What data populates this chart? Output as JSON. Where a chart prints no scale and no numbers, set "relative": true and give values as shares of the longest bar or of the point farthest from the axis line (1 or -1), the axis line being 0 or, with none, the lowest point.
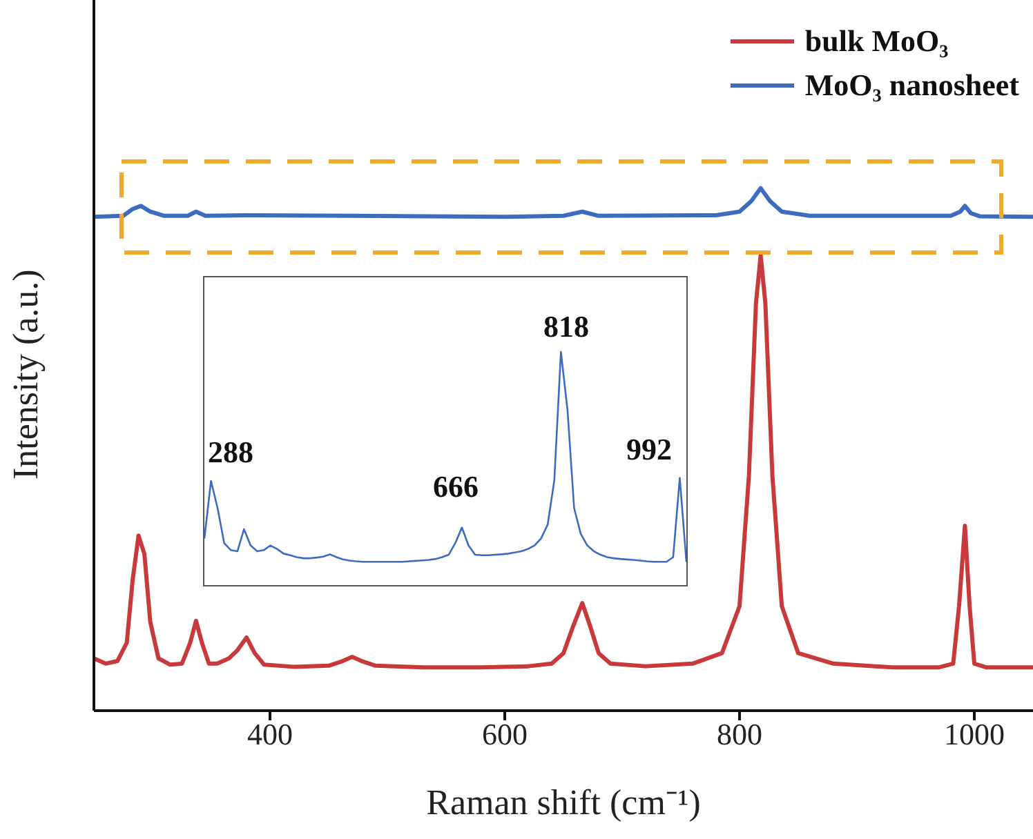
{
  "chart_data": [
    {
      "type": "line",
      "relative": true,
      "xlabel": "Raman shift (cm⁻¹)",
      "ylabel": "Intensity (a.u.)",
      "xlim": [
        250,
        1050
      ],
      "xticks": [
        400,
        600,
        800,
        1000
      ],
      "tick_labels": "x",
      "legend": "top right",
      "marker": "none",
      "series": [
        {
          "name": "bulk MoO₃",
          "color": "#c8393b",
          "x": [
            250,
            260,
            270,
            278,
            283,
            288,
            293,
            298,
            305,
            315,
            325,
            332,
            337,
            342,
            348,
            355,
            365,
            372,
            380,
            387,
            395,
            420,
            450,
            462,
            470,
            478,
            490,
            530,
            580,
            620,
            640,
            650,
            658,
            666,
            673,
            680,
            690,
            720,
            760,
            785,
            800,
            808,
            814,
            818,
            822,
            828,
            836,
            850,
            880,
            930,
            970,
            982,
            987,
            992,
            996,
            1000,
            1010,
            1050
          ],
          "values": [
            0.1,
            0.09,
            0.095,
            0.13,
            0.25,
            0.335,
            0.3,
            0.17,
            0.1,
            0.088,
            0.09,
            0.13,
            0.172,
            0.13,
            0.09,
            0.09,
            0.1,
            0.115,
            0.14,
            0.11,
            0.088,
            0.084,
            0.086,
            0.095,
            0.103,
            0.095,
            0.086,
            0.083,
            0.083,
            0.085,
            0.09,
            0.11,
            0.16,
            0.206,
            0.16,
            0.11,
            0.09,
            0.085,
            0.09,
            0.11,
            0.2,
            0.45,
            0.78,
            0.871,
            0.78,
            0.45,
            0.2,
            0.11,
            0.09,
            0.083,
            0.083,
            0.09,
            0.2,
            0.354,
            0.2,
            0.09,
            0.083,
            0.083
          ]
        },
        {
          "name": "MoO₃ nanosheet",
          "color": "#3d6bc0",
          "x": [
            250,
            275,
            283,
            290,
            298,
            310,
            330,
            337,
            345,
            380,
            470,
            600,
            650,
            666,
            680,
            780,
            800,
            810,
            818,
            826,
            836,
            860,
            980,
            988,
            992,
            997,
            1005,
            1050
          ],
          "values": [
            0.945,
            0.947,
            0.96,
            0.966,
            0.955,
            0.947,
            0.947,
            0.955,
            0.947,
            0.948,
            0.947,
            0.945,
            0.947,
            0.955,
            0.947,
            0.948,
            0.955,
            0.975,
            1,
            0.975,
            0.955,
            0.947,
            0.947,
            0.955,
            0.966,
            0.952,
            0.946,
            0.945
          ]
        }
      ]
    },
    {
      "type": "line",
      "relative": true,
      "marker": "none",
      "annotations": [
        "288",
        "666",
        "818",
        "992"
      ],
      "categories": [
        null,
        null,
        null,
        null,
        null,
        null,
        null,
        null,
        null,
        null,
        null,
        null,
        null,
        null,
        null,
        null,
        null,
        null,
        null,
        null,
        null,
        null,
        null,
        null,
        null,
        null,
        null,
        null,
        null,
        null,
        null,
        null,
        null,
        null,
        null,
        null,
        null,
        null,
        null,
        null,
        null,
        null,
        null,
        null,
        null,
        null,
        null,
        null,
        null,
        null,
        null,
        null,
        null,
        null,
        null,
        null,
        null,
        null,
        null,
        null,
        null,
        null,
        null,
        null,
        null,
        null,
        null,
        null,
        null,
        null,
        null,
        null,
        null,
        null
      ],
      "series": [
        {
          "color": "#3d6bc0",
          "values": [
            0.2,
            0.447,
            0.33,
            0.18,
            0.15,
            0.145,
            0.24,
            0.17,
            0.145,
            0.15,
            0.17,
            0.155,
            0.135,
            0.128,
            0.12,
            0.115,
            0.115,
            0.118,
            0.122,
            0.132,
            0.12,
            0.11,
            0.105,
            0.102,
            0.1,
            0.1,
            0.1,
            0.1,
            0.1,
            0.1,
            0.1,
            0.102,
            0.104,
            0.106,
            0.108,
            0.112,
            0.12,
            0.13,
            0.18,
            0.247,
            0.17,
            0.13,
            0.128,
            0.128,
            0.13,
            0.132,
            0.135,
            0.14,
            0.145,
            0.155,
            0.17,
            0.2,
            0.26,
            0.45,
            1,
            0.75,
            0.33,
            0.22,
            0.17,
            0.145,
            0.13,
            0.12,
            0.115,
            0.112,
            0.11,
            0.108,
            0.105,
            0.102,
            0.1,
            0.1,
            0.1,
            0.12,
            0.459,
            0.1
          ]
        }
      ]
    }
  ]
}
